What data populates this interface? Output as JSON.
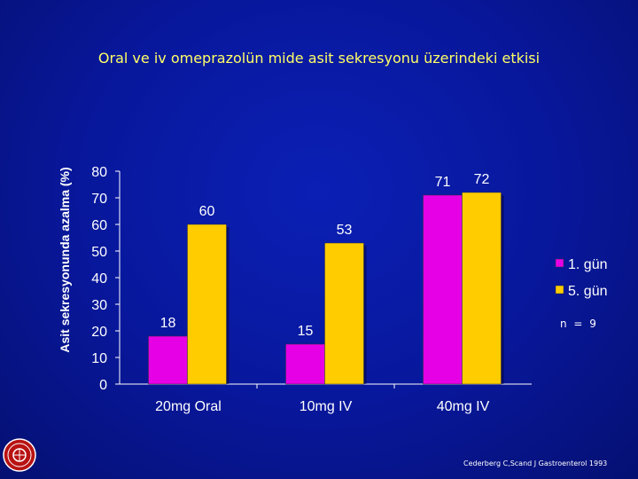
{
  "slide": {
    "title": "Oral ve iv  omeprazolün mide asit sekresyonu üzerindeki etkisi",
    "n_label": "n = 9",
    "citation": "Cederberg C,Scand J Gastroenterol 1993"
  },
  "colors": {
    "background": "#08179a",
    "series_1": "#e600e6",
    "series_2": "#ffcc00",
    "text": "#ffffff",
    "title": "#ffff66"
  },
  "chart_data": {
    "type": "bar",
    "title": "",
    "xlabel": "",
    "ylabel": "Asit sekresyonunda azalma (%)",
    "ylim": [
      0,
      80
    ],
    "yticks": [
      0,
      10,
      20,
      30,
      40,
      50,
      60,
      70,
      80
    ],
    "categories": [
      "20mg Oral",
      "10mg IV",
      "40mg IV"
    ],
    "series": [
      {
        "name": "1. gün",
        "values": [
          18,
          15,
          71
        ]
      },
      {
        "name": "5. gün",
        "values": [
          60,
          53,
          72
        ]
      }
    ],
    "legend_position": "right",
    "grid": false
  }
}
